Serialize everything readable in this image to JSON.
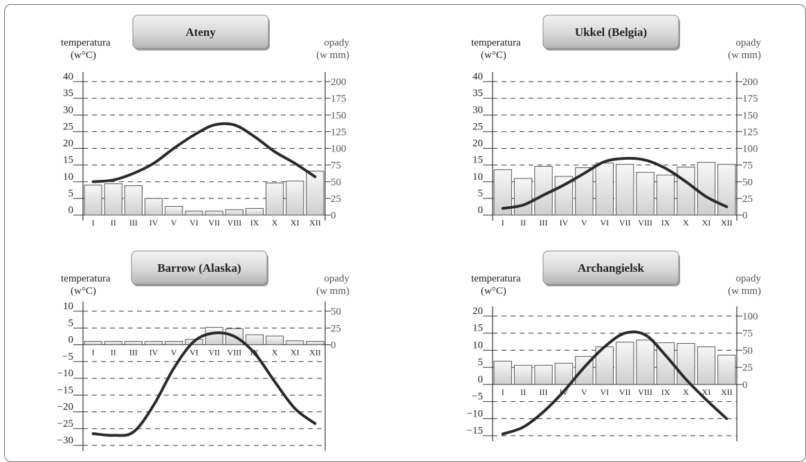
{
  "chart_data": [
    {
      "type": "bar+line",
      "title": "Ateny",
      "temp_label": [
        "temperatura",
        "(w°C)"
      ],
      "precip_label": [
        "opady",
        "(w mm)"
      ],
      "categories": [
        "I",
        "II",
        "III",
        "IV",
        "V",
        "VI",
        "VII",
        "VIII",
        "IX",
        "X",
        "XI",
        "XII"
      ],
      "temp_ticks": [
        "0",
        "5",
        "10",
        "15",
        "20",
        "25",
        "30",
        "35",
        "40"
      ],
      "precip_ticks": [
        "0",
        "25",
        "50",
        "75",
        "100",
        "125",
        "150",
        "175",
        "200"
      ],
      "temp_range": [
        0,
        40
      ],
      "precip_range": [
        0,
        200
      ],
      "temperature": [
        10,
        10.5,
        12.5,
        15.5,
        20,
        24,
        27,
        27,
        23.5,
        19,
        15.5,
        11.5
      ],
      "precipitation": [
        45,
        47,
        44,
        25,
        13,
        6,
        6,
        8,
        10,
        48,
        51,
        66
      ]
    },
    {
      "type": "bar+line",
      "title": "Ukkel (Belgia)",
      "temp_label": [
        "temperatura",
        "(w°C)"
      ],
      "precip_label": [
        "opady",
        "(w mm)"
      ],
      "categories": [
        "I",
        "II",
        "III",
        "IV",
        "V",
        "VI",
        "VII",
        "VIII",
        "IX",
        "X",
        "XI",
        "XII"
      ],
      "temp_ticks": [
        "0",
        "5",
        "10",
        "15",
        "20",
        "25",
        "30",
        "35",
        "40"
      ],
      "precip_ticks": [
        "0",
        "25",
        "50",
        "75",
        "100",
        "125",
        "150",
        "175",
        "200"
      ],
      "temp_range": [
        0,
        40
      ],
      "precip_range": [
        0,
        200
      ],
      "temperature": [
        2,
        3,
        6,
        9,
        12.5,
        16,
        17,
        16.5,
        14,
        10,
        5.5,
        2.5
      ],
      "precipitation": [
        68,
        55,
        73,
        58,
        71,
        78,
        76,
        64,
        60,
        72,
        79,
        76
      ]
    },
    {
      "type": "bar+line",
      "title": "Barrow (Alaska)",
      "temp_label": [
        "temperatura",
        "(w°C)"
      ],
      "precip_label": [
        "opady",
        "(w mm)"
      ],
      "categories": [
        "I",
        "II",
        "III",
        "IV",
        "V",
        "VI",
        "VII",
        "VIII",
        "IX",
        "X",
        "XI",
        "XII"
      ],
      "temp_ticks": [
        "−30",
        "−25",
        "−20",
        "−15",
        "−10",
        "−5",
        "0",
        "5",
        "10"
      ],
      "precip_ticks": [
        "0",
        "25",
        "50"
      ],
      "temp_range": [
        -30,
        10
      ],
      "precip_range": [
        0,
        50
      ],
      "temperature": [
        -26.5,
        -27,
        -26,
        -18,
        -7,
        1,
        3.5,
        2.5,
        -2.5,
        -11,
        -19,
        -23.5
      ],
      "precipitation": [
        5,
        5,
        5,
        5,
        5,
        8,
        26,
        24,
        15,
        13,
        6,
        5
      ]
    },
    {
      "type": "bar+line",
      "title": "Archangielsk",
      "temp_label": [
        "temperatura",
        "(w°C)"
      ],
      "precip_label": [
        "opady",
        "(w mm)"
      ],
      "categories": [
        "I",
        "II",
        "III",
        "IV",
        "V",
        "VI",
        "VII",
        "VIII",
        "IX",
        "X",
        "XI",
        "XII"
      ],
      "temp_ticks": [
        "−15",
        "−10",
        "−5",
        "0",
        "5",
        "10",
        "15",
        "20"
      ],
      "precip_ticks": [
        "0",
        "25",
        "50",
        "75",
        "100"
      ],
      "temp_range": [
        -15,
        20
      ],
      "precip_range": [
        0,
        100
      ],
      "temperature": [
        -14.5,
        -12.5,
        -8,
        -2,
        5,
        11,
        15,
        14.5,
        8.5,
        1.5,
        -4.5,
        -10
      ],
      "precipitation": [
        34,
        28,
        28,
        31,
        41,
        55,
        62,
        65,
        61,
        60,
        55,
        43
      ]
    }
  ]
}
